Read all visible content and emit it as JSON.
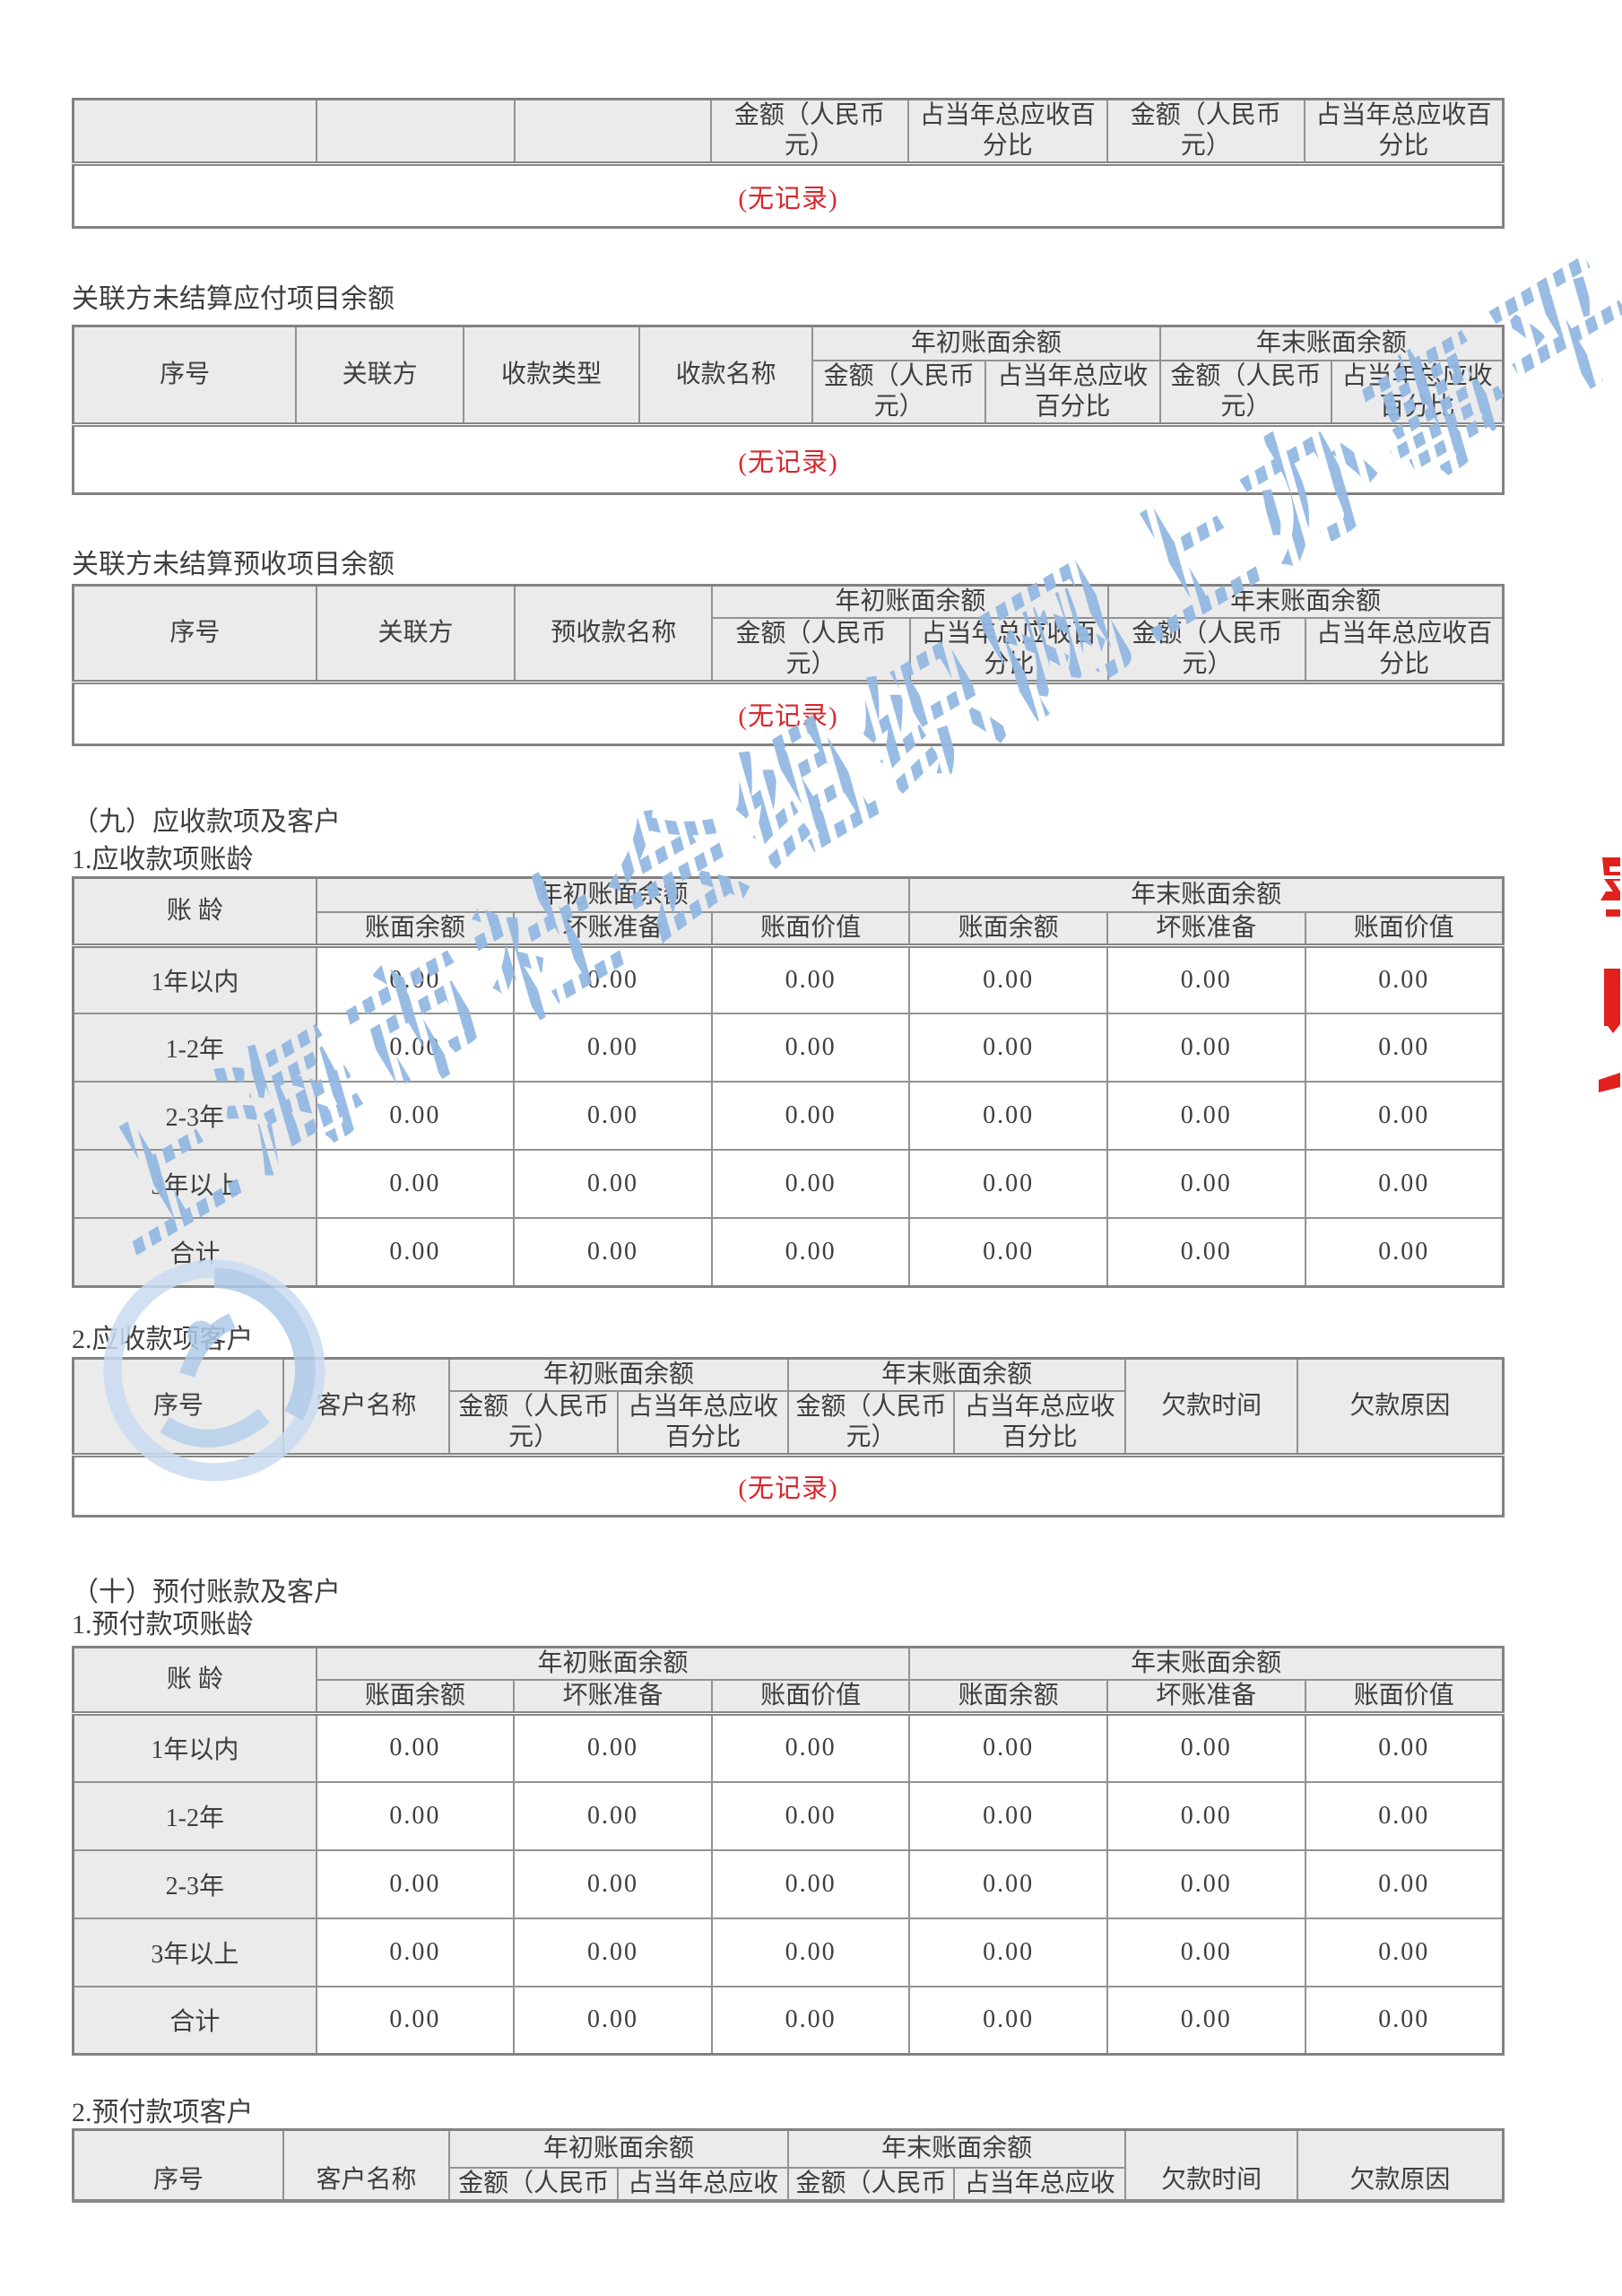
{
  "page": {
    "background": "#ffffff",
    "text_color": "#3e3e3e",
    "border_color": "#8a8a8a",
    "header_cell_bg": "#ebebeb",
    "no_record_color": "#d9262c",
    "watermark_color": "#93b8e2",
    "seal_color": "#e2201c"
  },
  "labels": {
    "seq": "序号",
    "related_party": "关联方",
    "receipt_type": "收款类型",
    "receipt_name": "收款名称",
    "advance_name": "预收款名称",
    "customer_name": "客户名称",
    "begin_balance": "年初账面余额",
    "end_balance": "年末账面余额",
    "amount_rmb": "金额（人民币元）",
    "pct_of_receivable": "占当年总应收百分比",
    "book_balance": "账面余额",
    "bad_debt_provision": "坏账准备",
    "book_value": "账面价值",
    "aging": "账 龄",
    "debt_time": "欠款时间",
    "debt_reason": "欠款原因",
    "no_record": "(无记录)"
  },
  "sections": {
    "payable_heading": "关联方未结算应付项目余额",
    "advance_heading": "关联方未结算预收项目余额",
    "s9_heading": "（九）应收款项及客户",
    "s9_sub1": "1.应收款项账龄",
    "s9_sub2": "2.应收款项客户",
    "s10_heading": "（十）预付账款及客户",
    "s10_sub1": "1.预付款项账龄",
    "s10_sub2": "2.预付款项客户"
  },
  "tables": {
    "receivable_tail": {
      "record": "(无记录)"
    },
    "related_payables": {
      "record": "(无记录)"
    },
    "related_advances": {
      "record": "(无记录)"
    },
    "ar_aging": {
      "rows": [
        {
          "label": "1年以内",
          "values": [
            "0.00",
            "0.00",
            "0.00",
            "0.00",
            "0.00",
            "0.00"
          ]
        },
        {
          "label": "1-2年",
          "values": [
            "0.00",
            "0.00",
            "0.00",
            "0.00",
            "0.00",
            "0.00"
          ]
        },
        {
          "label": "2-3年",
          "values": [
            "0.00",
            "0.00",
            "0.00",
            "0.00",
            "0.00",
            "0.00"
          ]
        },
        {
          "label": "3年以上",
          "values": [
            "0.00",
            "0.00",
            "0.00",
            "0.00",
            "0.00",
            "0.00"
          ]
        },
        {
          "label": "合计",
          "values": [
            "0.00",
            "0.00",
            "0.00",
            "0.00",
            "0.00",
            "0.00"
          ]
        }
      ]
    },
    "ar_customers": {
      "record": "(无记录)"
    },
    "prepaid_aging": {
      "rows": [
        {
          "label": "1年以内",
          "values": [
            "0.00",
            "0.00",
            "0.00",
            "0.00",
            "0.00",
            "0.00"
          ]
        },
        {
          "label": "1-2年",
          "values": [
            "0.00",
            "0.00",
            "0.00",
            "0.00",
            "0.00",
            "0.00"
          ]
        },
        {
          "label": "2-3年",
          "values": [
            "0.00",
            "0.00",
            "0.00",
            "0.00",
            "0.00",
            "0.00"
          ]
        },
        {
          "label": "3年以上",
          "values": [
            "0.00",
            "0.00",
            "0.00",
            "0.00",
            "0.00",
            "0.00"
          ]
        },
        {
          "label": "合计",
          "values": [
            "0.00",
            "0.00",
            "0.00",
            "0.00",
            "0.00",
            "0.00"
          ]
        }
      ]
    },
    "prepaid_customers": {}
  },
  "watermark": {
    "text": "上海市社会组织网上办事平台"
  }
}
